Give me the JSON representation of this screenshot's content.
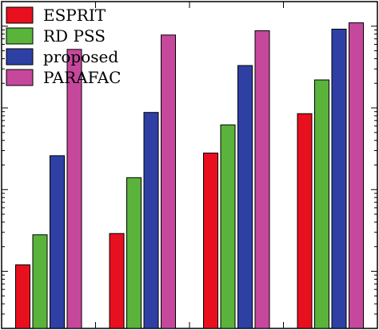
{
  "chart_data": {
    "type": "bar",
    "yscale": "log",
    "categories": [
      "",
      "",
      "",
      ""
    ],
    "ylim": [
      2e-05,
      0.2
    ],
    "grid": false,
    "legend_position": "top-left",
    "series": [
      {
        "name": "ESPRIT",
        "color": "#e8101e",
        "values": [
          0.00012,
          0.00029,
          0.0028,
          0.0085
        ]
      },
      {
        "name": "RD PSS",
        "color": "#5ab33a",
        "values": [
          0.00028,
          0.0014,
          0.0062,
          0.022
        ]
      },
      {
        "name": "proposed",
        "color": "#2f40a4",
        "values": [
          0.0026,
          0.0088,
          0.033,
          0.092
        ]
      },
      {
        "name": "PARAFAC",
        "color": "#c6489d",
        "values": [
          0.052,
          0.078,
          0.088,
          0.11
        ]
      }
    ]
  }
}
